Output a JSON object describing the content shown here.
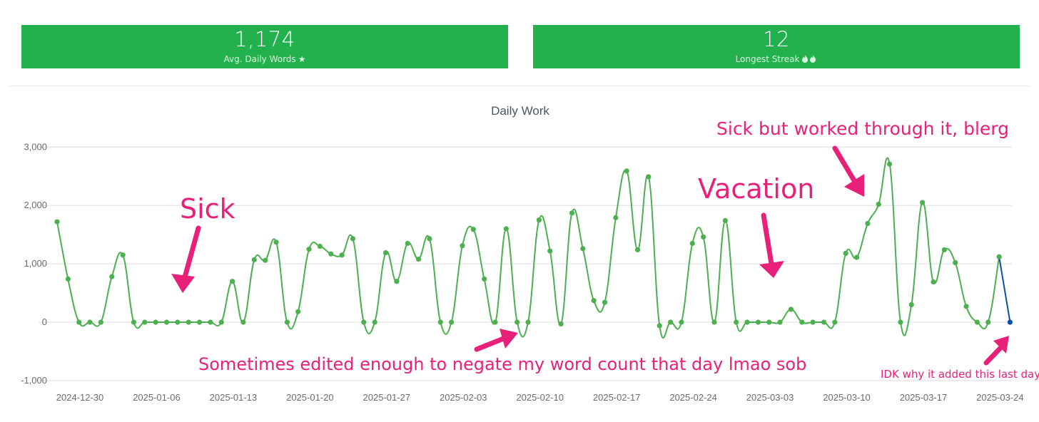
{
  "stats": {
    "avg": {
      "value": "1,174",
      "label": "Avg. Daily Words",
      "icon": "star-icon"
    },
    "streak": {
      "value": "12",
      "label": "Longest Streak",
      "icon": "fire-icon"
    }
  },
  "colors": {
    "stat_bg": "#22b14c",
    "series": "#4caf50",
    "last_segment": "#0b4da2",
    "annotation": "#e8207a"
  },
  "annotations": {
    "sick": "Sick",
    "vacation": "Vacation",
    "sick_worked": "Sick but worked through it, blerg",
    "negative": "Sometimes edited enough to negate my word count that day lmao sob",
    "last_day": "IDK why it added this last day"
  },
  "chart_data": {
    "type": "line",
    "title": "Daily Work",
    "xlabel": "",
    "ylabel": "",
    "ylim": [
      -1000,
      3000
    ],
    "grid": true,
    "y_ticks": [
      3000,
      2000,
      1000,
      0,
      -1000
    ],
    "y_tick_labels": [
      "3,000",
      "2,000",
      "1,000",
      "0",
      "-1,000"
    ],
    "x_tick_labels": [
      "2024-12-30",
      "2025-01-06",
      "2025-01-13",
      "2025-01-20",
      "2025-01-27",
      "2025-02-03",
      "2025-02-10",
      "2025-02-17",
      "2025-02-24",
      "2025-03-03",
      "2025-03-10",
      "2025-03-17",
      "2025-03-24"
    ],
    "x_start": "2024-12-30",
    "series": [
      {
        "values": [
          1720,
          740,
          0,
          0,
          0,
          780,
          1150,
          0,
          0,
          0,
          0,
          0,
          0,
          0,
          0,
          0,
          700,
          0,
          1070,
          1060,
          1370,
          0,
          180,
          1250,
          1300,
          1170,
          1150,
          1430,
          0,
          0,
          1190,
          700,
          1350,
          1080,
          1430,
          0,
          0,
          1310,
          1590,
          740,
          0,
          1600,
          0,
          0,
          1750,
          1220,
          -30,
          1870,
          1260,
          370,
          340,
          1790,
          2590,
          1240,
          2490,
          -60,
          0,
          0,
          1350,
          1460,
          0,
          1740,
          0,
          0,
          0,
          0,
          0,
          220,
          0,
          0,
          0,
          0,
          1180,
          1110,
          1690,
          2020,
          2710,
          0,
          300,
          2050,
          690,
          1240,
          1020,
          270,
          0,
          0,
          1120,
          0
        ]
      }
    ]
  }
}
